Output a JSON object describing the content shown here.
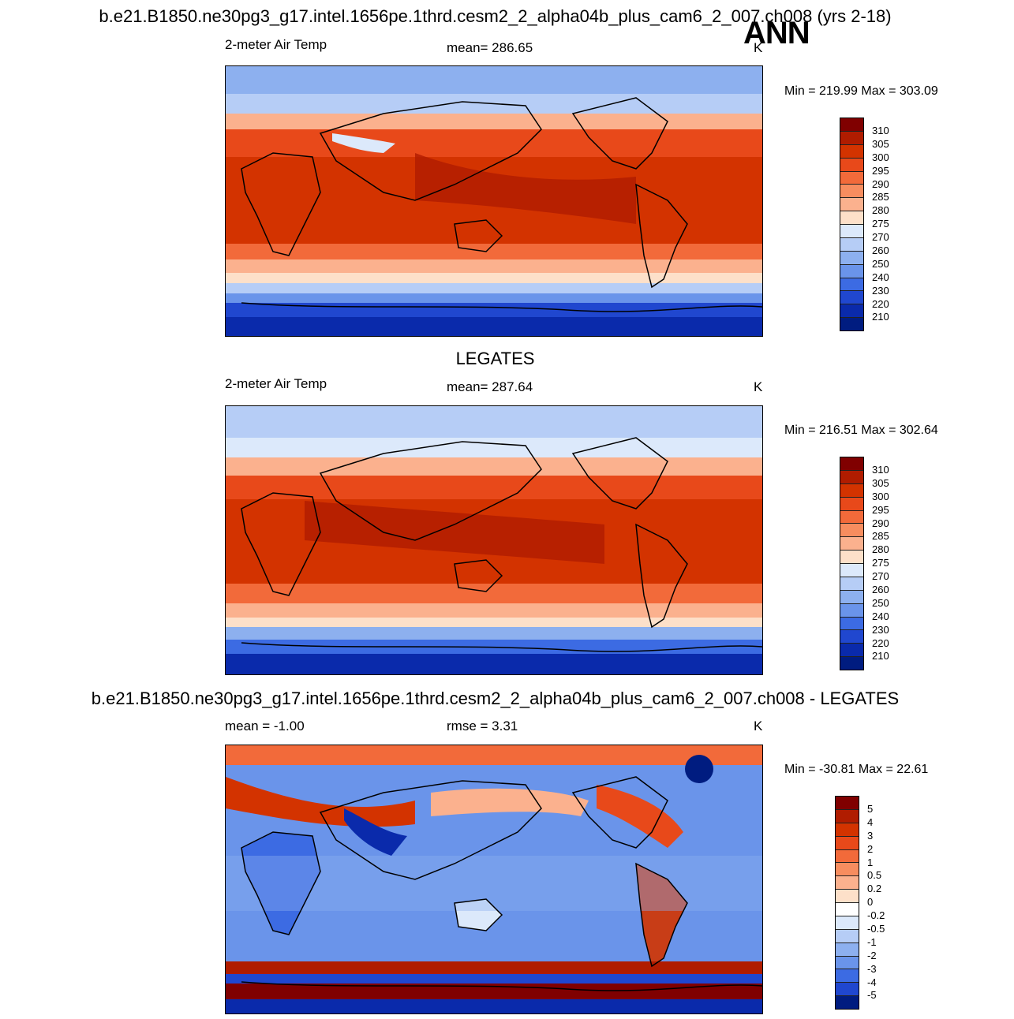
{
  "header": {
    "title": "b.e21.B1850.ne30pg3_g17.intel.1656pe.1thrd.cesm2_2_alpha04b_plus_cam6_2_007.ch008 (yrs 2-18)",
    "season": "ANN"
  },
  "panels": [
    {
      "title": "",
      "left_label": "2-meter Air Temp",
      "center_label": "mean= 286.65",
      "unit": "K",
      "minmax": "Min = 219.99 Max = 303.09",
      "colorbar": {
        "labels": [
          "310",
          "305",
          "300",
          "295",
          "290",
          "285",
          "280",
          "275",
          "270",
          "260",
          "250",
          "240",
          "230",
          "220",
          "210"
        ],
        "colors": [
          "#800000",
          "#b01c00",
          "#d33300",
          "#e8491a",
          "#f26a3a",
          "#f78d5f",
          "#fbb18e",
          "#fde0c9",
          "#dce9fb",
          "#b6cdf6",
          "#8db0ef",
          "#6a94ea",
          "#3c6be3",
          "#2047cf",
          "#0a2aab",
          "#001c80"
        ]
      }
    },
    {
      "title": "LEGATES",
      "left_label": "2-meter Air Temp",
      "center_label": "mean= 287.64",
      "unit": "K",
      "minmax": "Min = 216.51 Max = 302.64",
      "colorbar": {
        "labels": [
          "310",
          "305",
          "300",
          "295",
          "290",
          "285",
          "280",
          "275",
          "270",
          "260",
          "250",
          "240",
          "230",
          "220",
          "210"
        ],
        "colors": [
          "#800000",
          "#b01c00",
          "#d33300",
          "#e8491a",
          "#f26a3a",
          "#f78d5f",
          "#fbb18e",
          "#fde0c9",
          "#dce9fb",
          "#b6cdf6",
          "#8db0ef",
          "#6a94ea",
          "#3c6be3",
          "#2047cf",
          "#0a2aab",
          "#001c80"
        ]
      }
    },
    {
      "title": "b.e21.B1850.ne30pg3_g17.intel.1656pe.1thrd.cesm2_2_alpha04b_plus_cam6_2_007.ch008 - LEGATES",
      "left_label": "mean =  -1.00",
      "center_label": "rmse =   3.31",
      "unit": "K",
      "minmax": "Min = -30.81 Max =  22.61",
      "colorbar": {
        "labels": [
          "5",
          "4",
          "3",
          "2",
          "1",
          "0.5",
          "0.2",
          "0",
          "-0.2",
          "-0.5",
          "-1",
          "-2",
          "-3",
          "-4",
          "-5"
        ],
        "colors": [
          "#800000",
          "#b01c00",
          "#d33300",
          "#e8491a",
          "#f26a3a",
          "#f78d5f",
          "#fbb18e",
          "#fde0c9",
          "#ffffff",
          "#dce9fb",
          "#b6cdf6",
          "#8db0ef",
          "#6a94ea",
          "#3c6be3",
          "#2047cf",
          "#001c80"
        ]
      }
    }
  ]
}
